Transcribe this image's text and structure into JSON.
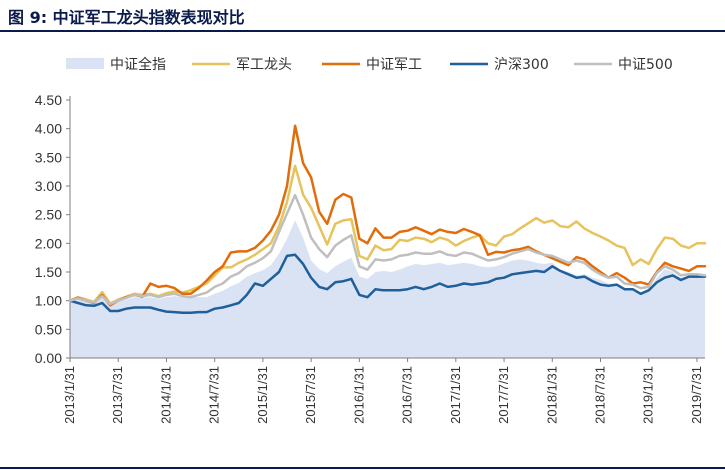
{
  "figure": {
    "title": "图 9: 中证军工龙头指数表现对比"
  },
  "chart_data": {
    "type": "line",
    "x": [
      "2013/1/31",
      "2013/2/28",
      "2013/3/31",
      "2013/4/30",
      "2013/5/31",
      "2013/6/30",
      "2013/7/31",
      "2013/8/31",
      "2013/9/30",
      "2013/10/31",
      "2013/11/30",
      "2013/12/31",
      "2014/1/31",
      "2014/2/28",
      "2014/3/31",
      "2014/4/30",
      "2014/5/31",
      "2014/6/30",
      "2014/7/31",
      "2014/8/31",
      "2014/9/30",
      "2014/10/31",
      "2014/11/30",
      "2014/12/31",
      "2015/1/31",
      "2015/2/28",
      "2015/3/31",
      "2015/4/30",
      "2015/5/31",
      "2015/6/30",
      "2015/7/31",
      "2015/8/31",
      "2015/9/30",
      "2015/10/31",
      "2015/11/30",
      "2015/12/31",
      "2016/1/31",
      "2016/2/29",
      "2016/3/31",
      "2016/4/30",
      "2016/5/31",
      "2016/6/30",
      "2016/7/31",
      "2016/8/31",
      "2016/9/30",
      "2016/10/31",
      "2016/11/30",
      "2016/12/31",
      "2017/1/31",
      "2017/2/28",
      "2017/3/31",
      "2017/4/30",
      "2017/5/31",
      "2017/6/30",
      "2017/7/31",
      "2017/8/31",
      "2017/9/30",
      "2017/10/31",
      "2017/11/30",
      "2017/12/31",
      "2018/1/31",
      "2018/2/28",
      "2018/3/31",
      "2018/4/30",
      "2018/5/31",
      "2018/6/30",
      "2018/7/31",
      "2018/8/31",
      "2018/9/30",
      "2018/10/31",
      "2018/11/30",
      "2018/12/31",
      "2019/1/31",
      "2019/2/28",
      "2019/3/31",
      "2019/4/30",
      "2019/5/31",
      "2019/6/30",
      "2019/7/31",
      "2019/8/31"
    ],
    "x_tick_labels": [
      "2013/1/31",
      "2013/7/31",
      "2014/1/31",
      "2014/7/31",
      "2015/1/31",
      "2015/7/31",
      "2016/1/31",
      "2016/7/31",
      "2017/1/31",
      "2017/7/31",
      "2018/1/31",
      "2018/7/31",
      "2019/1/31",
      "2019/7/31"
    ],
    "ylim": [
      0,
      4.5
    ],
    "y_ticks": [
      "0.00",
      "0.50",
      "1.00",
      "1.50",
      "2.00",
      "2.50",
      "3.00",
      "3.50",
      "4.00",
      "4.50"
    ],
    "legend_position": "top",
    "grid": false,
    "series": [
      {
        "name": "中证全指",
        "style": "area",
        "color": "#dae3f3",
        "values": [
          1.0,
          1.03,
          0.98,
          0.96,
          1.07,
          0.93,
          0.98,
          1.02,
          1.06,
          1.05,
          1.06,
          1.03,
          1.06,
          1.08,
          1.06,
          1.07,
          1.06,
          1.06,
          1.12,
          1.17,
          1.25,
          1.31,
          1.42,
          1.48,
          1.53,
          1.62,
          1.82,
          2.08,
          2.4,
          2.1,
          1.7,
          1.55,
          1.48,
          1.6,
          1.68,
          1.75,
          1.42,
          1.38,
          1.5,
          1.52,
          1.5,
          1.54,
          1.6,
          1.64,
          1.62,
          1.64,
          1.66,
          1.62,
          1.64,
          1.66,
          1.64,
          1.6,
          1.58,
          1.6,
          1.65,
          1.7,
          1.72,
          1.7,
          1.66,
          1.64,
          1.66,
          1.54,
          1.5,
          1.44,
          1.46,
          1.4,
          1.36,
          1.3,
          1.3,
          1.18,
          1.21,
          1.15,
          1.18,
          1.4,
          1.55,
          1.5,
          1.4,
          1.42,
          1.42,
          1.4
        ]
      },
      {
        "name": "军工龙头",
        "style": "line",
        "color": "#e6c35c",
        "values": [
          1.0,
          1.06,
          1.02,
          0.98,
          1.15,
          0.95,
          1.02,
          1.07,
          1.12,
          1.1,
          1.12,
          1.08,
          1.13,
          1.16,
          1.14,
          1.18,
          1.24,
          1.3,
          1.44,
          1.58,
          1.58,
          1.66,
          1.72,
          1.8,
          1.9,
          2.0,
          2.3,
          2.72,
          3.35,
          2.85,
          2.62,
          2.3,
          1.98,
          2.34,
          2.4,
          2.42,
          1.78,
          1.72,
          1.96,
          1.88,
          1.9,
          2.06,
          2.04,
          2.1,
          2.08,
          2.02,
          2.1,
          2.06,
          1.96,
          2.04,
          2.1,
          2.14,
          2.0,
          1.96,
          2.12,
          2.16,
          2.26,
          2.35,
          2.44,
          2.36,
          2.4,
          2.3,
          2.28,
          2.38,
          2.26,
          2.18,
          2.12,
          2.05,
          1.96,
          1.92,
          1.62,
          1.72,
          1.64,
          1.9,
          2.1,
          2.08,
          1.96,
          1.92,
          2.0,
          2.0
        ]
      },
      {
        "name": "中证军工",
        "style": "line",
        "color": "#e36c0a",
        "values": [
          1.0,
          1.05,
          1.0,
          0.96,
          1.1,
          0.92,
          1.0,
          1.06,
          1.1,
          1.07,
          1.3,
          1.24,
          1.26,
          1.22,
          1.12,
          1.12,
          1.22,
          1.35,
          1.5,
          1.6,
          1.84,
          1.86,
          1.86,
          1.92,
          2.05,
          2.22,
          2.5,
          3.0,
          4.05,
          3.4,
          3.15,
          2.55,
          2.34,
          2.76,
          2.86,
          2.8,
          2.08,
          2.0,
          2.26,
          2.1,
          2.1,
          2.2,
          2.22,
          2.28,
          2.22,
          2.16,
          2.24,
          2.2,
          2.18,
          2.25,
          2.2,
          2.14,
          1.8,
          1.85,
          1.84,
          1.88,
          1.9,
          1.94,
          1.86,
          1.8,
          1.74,
          1.68,
          1.62,
          1.76,
          1.72,
          1.6,
          1.5,
          1.4,
          1.48,
          1.4,
          1.3,
          1.32,
          1.28,
          1.5,
          1.66,
          1.6,
          1.56,
          1.52,
          1.6,
          1.6
        ]
      },
      {
        "name": "沪深300",
        "style": "line",
        "color": "#1f5f9a",
        "values": [
          1.0,
          0.96,
          0.92,
          0.91,
          0.96,
          0.82,
          0.82,
          0.86,
          0.88,
          0.88,
          0.88,
          0.84,
          0.81,
          0.8,
          0.79,
          0.79,
          0.8,
          0.8,
          0.86,
          0.88,
          0.92,
          0.96,
          1.1,
          1.3,
          1.26,
          1.38,
          1.5,
          1.78,
          1.8,
          1.64,
          1.4,
          1.24,
          1.2,
          1.32,
          1.34,
          1.38,
          1.1,
          1.06,
          1.2,
          1.18,
          1.18,
          1.18,
          1.2,
          1.24,
          1.2,
          1.24,
          1.3,
          1.24,
          1.26,
          1.3,
          1.28,
          1.3,
          1.32,
          1.38,
          1.4,
          1.46,
          1.48,
          1.5,
          1.52,
          1.5,
          1.6,
          1.52,
          1.46,
          1.4,
          1.42,
          1.34,
          1.28,
          1.26,
          1.28,
          1.2,
          1.2,
          1.12,
          1.18,
          1.32,
          1.4,
          1.44,
          1.36,
          1.42,
          1.42,
          1.42
        ]
      },
      {
        "name": "中证500",
        "style": "line",
        "color": "#bfbfbf",
        "values": [
          1.0,
          1.04,
          1.0,
          0.97,
          1.08,
          0.94,
          1.0,
          1.05,
          1.1,
          1.08,
          1.1,
          1.06,
          1.1,
          1.12,
          1.08,
          1.06,
          1.1,
          1.14,
          1.24,
          1.3,
          1.42,
          1.48,
          1.6,
          1.66,
          1.74,
          1.86,
          2.2,
          2.52,
          2.84,
          2.5,
          2.1,
          1.9,
          1.76,
          1.96,
          2.06,
          2.14,
          1.6,
          1.54,
          1.72,
          1.7,
          1.72,
          1.78,
          1.8,
          1.84,
          1.82,
          1.82,
          1.86,
          1.8,
          1.78,
          1.84,
          1.82,
          1.76,
          1.7,
          1.72,
          1.76,
          1.82,
          1.86,
          1.9,
          1.84,
          1.8,
          1.78,
          1.72,
          1.66,
          1.7,
          1.66,
          1.54,
          1.46,
          1.4,
          1.42,
          1.3,
          1.28,
          1.22,
          1.24,
          1.48,
          1.6,
          1.54,
          1.44,
          1.46,
          1.46,
          1.44
        ]
      }
    ]
  }
}
